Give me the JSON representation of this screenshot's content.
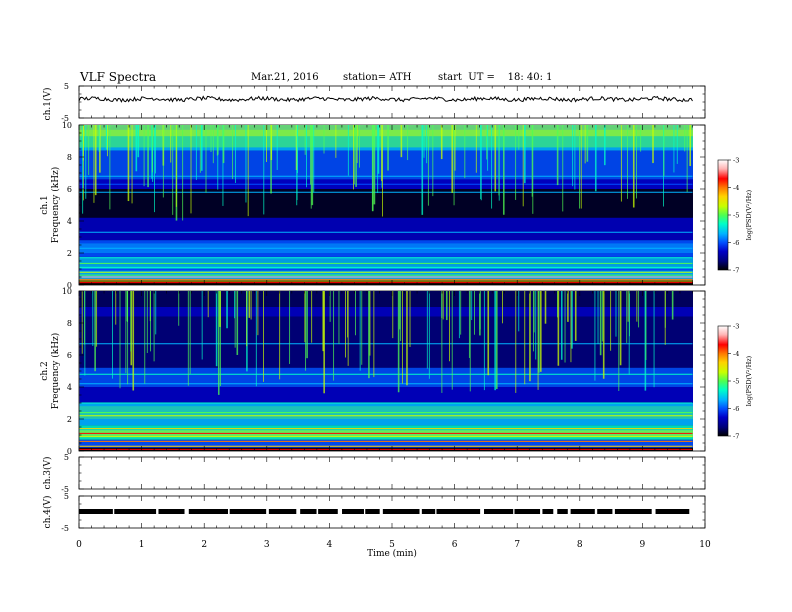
{
  "header": {
    "title": "VLF Spectra",
    "date": "Mar.21, 2016",
    "station": "station= ATH",
    "start": "start  UT =    18: 40: 1"
  },
  "chart_data": [
    {
      "type": "line",
      "panel": "ch1-waveform",
      "ylabel": "ch.1(V)",
      "ylim": [
        -5,
        5
      ],
      "yticks": [
        "5",
        "-5"
      ],
      "xlim": [
        0,
        10
      ],
      "description_level": "trace around +1 V"
    },
    {
      "type": "heatmap",
      "panel": "ch1-spectrogram",
      "ylabel_line1": "ch.1",
      "ylabel_line2": "Frequency (kHz)",
      "ylim": [
        0,
        10
      ],
      "yticks": [
        "0",
        "2",
        "4",
        "6",
        "8",
        "10"
      ],
      "xlim": [
        0,
        9.8
      ],
      "colorbar": {
        "label": "log(PSD(V²/Hz)",
        "range": [
          -7,
          -3
        ],
        "ticks": [
          "-3",
          "-4",
          "-5",
          "-6",
          "-7"
        ]
      }
    },
    {
      "type": "heatmap",
      "panel": "ch2-spectrogram",
      "ylabel_line1": "ch.2",
      "ylabel_line2": "Frequency (kHz)",
      "ylim": [
        0,
        10
      ],
      "yticks": [
        "0",
        "2",
        "4",
        "6",
        "8",
        "10"
      ],
      "xlim": [
        0,
        9.8
      ],
      "colorbar": {
        "label": "log(PSD(V²/Hz)",
        "range": [
          -7,
          -3
        ],
        "ticks": [
          "-3",
          "-4",
          "-5",
          "-6",
          "-7"
        ]
      }
    },
    {
      "type": "line",
      "panel": "ch3-waveform",
      "ylabel": "ch.3(V)",
      "ylim": [
        -5,
        5
      ],
      "yticks": [
        "5",
        "-5"
      ]
    },
    {
      "type": "line",
      "panel": "ch4-waveform",
      "ylabel": "ch.4(V)",
      "ylim": [
        -5,
        5
      ],
      "yticks": [
        "5",
        "-5"
      ],
      "description_level": "thick trace near 0 V"
    }
  ],
  "xaxis": {
    "label": "Time  (min)",
    "ticks": [
      "0",
      "1",
      "2",
      "3",
      "4",
      "5",
      "6",
      "7",
      "8",
      "9",
      "10"
    ],
    "range": [
      0,
      10
    ]
  },
  "colors": {
    "colormap": [
      "#000000",
      "#000078",
      "#0000c8",
      "#0050ff",
      "#00b4ff",
      "#00ffc8",
      "#50ff50",
      "#c8ff00",
      "#ffd200",
      "#ff7800",
      "#ff0000",
      "#ffb4b4",
      "#ffffff"
    ]
  }
}
